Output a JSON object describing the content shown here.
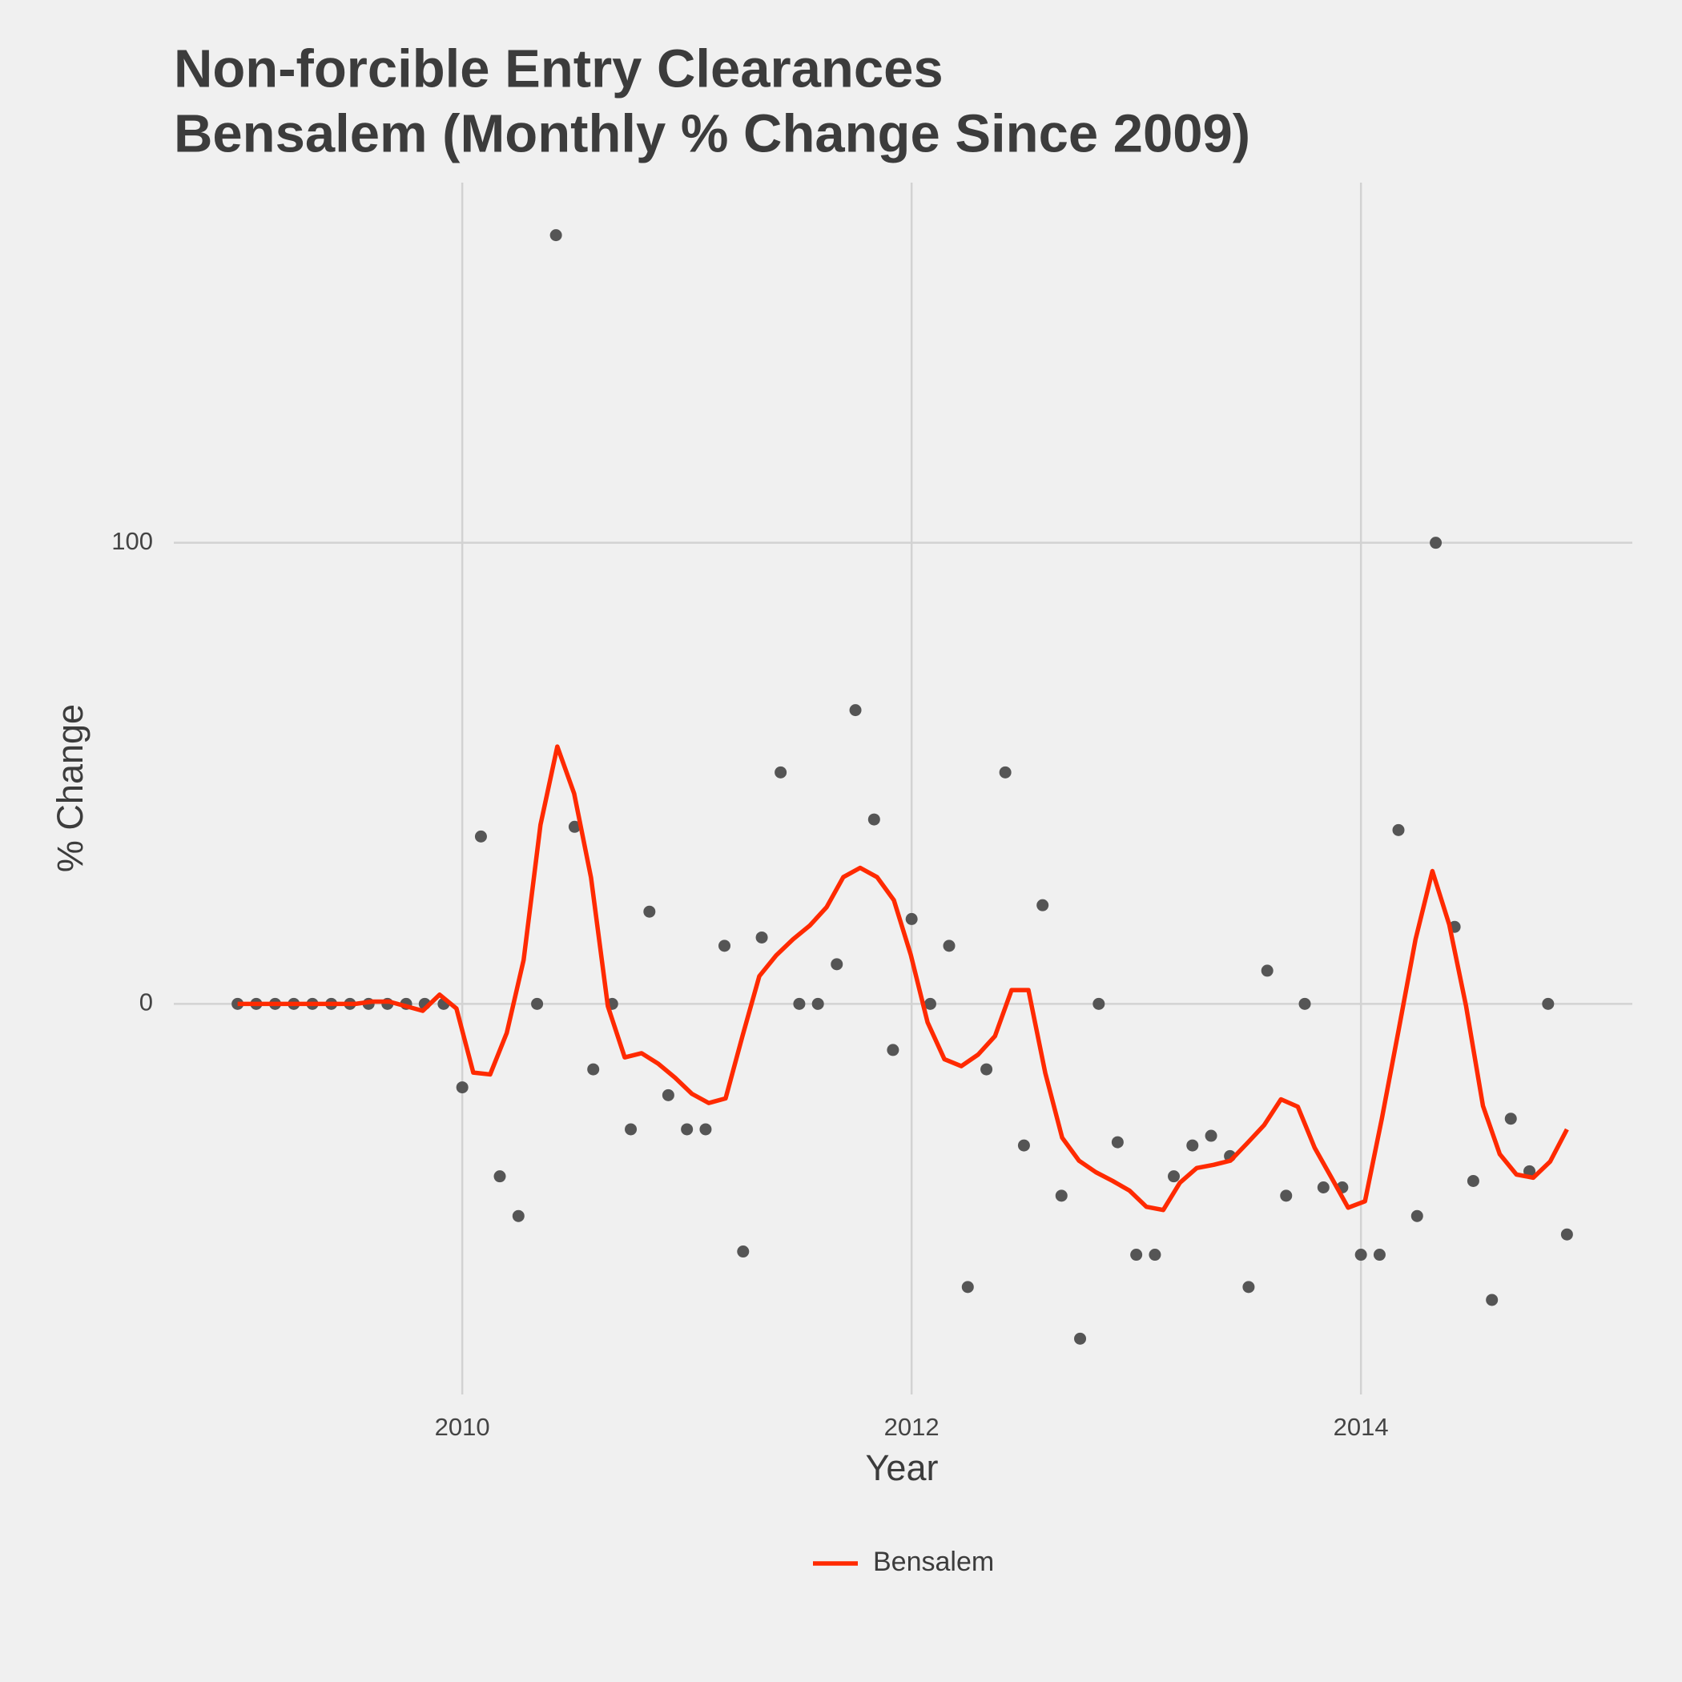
{
  "chart_data": {
    "type": "line",
    "title": "Non-forcible Entry Clearances",
    "subtitle": "Bensalem (Monthly % Change Since 2009)",
    "x_label": "Year",
    "y_label": "% Change",
    "xlim": [
      2008.716,
      2015.208
    ],
    "xticks": [
      2010,
      2012,
      2014
    ],
    "ylim": [
      -84.7,
      178.1
    ],
    "yticks": [
      0,
      100
    ],
    "grid": true,
    "legend": "bottom",
    "points": {
      "color": "#555555",
      "x": [
        2009,
        2009.083,
        2009.167,
        2009.25,
        2009.333,
        2009.417,
        2009.5,
        2009.583,
        2009.667,
        2009.75,
        2009.833,
        2009.917,
        2010,
        2010.083,
        2010.167,
        2010.25,
        2010.333,
        2010.417,
        2010.5,
        2010.583,
        2010.667,
        2010.75,
        2010.833,
        2010.917,
        2011,
        2011.083,
        2011.167,
        2011.25,
        2011.333,
        2011.417,
        2011.5,
        2011.583,
        2011.667,
        2011.75,
        2011.833,
        2011.917,
        2012,
        2012.083,
        2012.167,
        2012.25,
        2012.333,
        2012.417,
        2012.5,
        2012.583,
        2012.667,
        2012.75,
        2012.833,
        2012.917,
        2013,
        2013.083,
        2013.167,
        2013.25,
        2013.333,
        2013.417,
        2013.5,
        2013.583,
        2013.667,
        2013.75,
        2013.833,
        2013.917,
        2014,
        2014.083,
        2014.167,
        2014.25,
        2014.333,
        2014.417,
        2014.5,
        2014.583,
        2014.667,
        2014.75,
        2014.833,
        2014.917
      ],
      "values": [
        0,
        0,
        0,
        0,
        0,
        0,
        0,
        0,
        0,
        0,
        0,
        0,
        -18.1,
        36.3,
        -37.4,
        -46,
        0,
        166.7,
        38.4,
        -14.2,
        0,
        -27.2,
        20,
        -19.8,
        -27.2,
        -27.2,
        12.6,
        -53.7,
        14.4,
        50.2,
        0,
        0,
        8.6,
        63.7,
        40,
        -10,
        18.4,
        0,
        12.6,
        -61.4,
        -14.2,
        50.2,
        -30.7,
        21.4,
        -41.6,
        -72.6,
        0,
        -30,
        -54.4,
        -54.4,
        -37.4,
        -30.7,
        -28.6,
        -33,
        -61.4,
        7.2,
        -41.6,
        0,
        -39.8,
        -39.8,
        -54.4,
        -54.4,
        37.7,
        -46,
        100,
        16.7,
        -38.4,
        -64.2,
        -24.9,
        -36.3,
        0,
        -50
      ]
    },
    "series": [
      {
        "name": "Bensalem",
        "color": "#ff2a00",
        "x": [
          2009,
          2009.075,
          2009.15,
          2009.225,
          2009.3,
          2009.375,
          2009.449,
          2009.524,
          2009.599,
          2009.674,
          2009.749,
          2009.824,
          2009.899,
          2009.974,
          2010.049,
          2010.124,
          2010.198,
          2010.273,
          2010.348,
          2010.423,
          2010.498,
          2010.573,
          2010.648,
          2010.723,
          2010.798,
          2010.873,
          2010.947,
          2011.022,
          2011.097,
          2011.172,
          2011.247,
          2011.322,
          2011.397,
          2011.472,
          2011.547,
          2011.622,
          2011.696,
          2011.771,
          2011.846,
          2011.921,
          2011.996,
          2012.071,
          2012.146,
          2012.221,
          2012.296,
          2012.371,
          2012.445,
          2012.52,
          2012.595,
          2012.67,
          2012.745,
          2012.82,
          2012.895,
          2012.97,
          2013.045,
          2013.12,
          2013.194,
          2013.269,
          2013.344,
          2013.419,
          2013.494,
          2013.569,
          2013.644,
          2013.719,
          2013.794,
          2013.869,
          2013.943,
          2014.018,
          2014.093,
          2014.168,
          2014.243,
          2014.318,
          2014.393,
          2014.468,
          2014.543,
          2014.618,
          2014.692,
          2014.767,
          2014.842,
          2014.917
        ],
        "values": [
          0,
          0,
          0,
          0,
          0,
          0,
          0,
          0,
          0.5,
          0.5,
          -0.5,
          -1.5,
          2,
          -1,
          -14.9,
          -15.3,
          -6.3,
          9.5,
          38.8,
          55.8,
          45.6,
          27.4,
          -0.5,
          -11.6,
          -10.7,
          -13,
          -16,
          -19.5,
          -21.5,
          -20.5,
          -7,
          6,
          10.5,
          14,
          17,
          21,
          27.5,
          29.5,
          27.5,
          22.5,
          10.7,
          -4,
          -12,
          -13.5,
          -11,
          -7,
          3,
          3,
          -15,
          -29,
          -34,
          -36.5,
          -38.4,
          -40.5,
          -44,
          -44.7,
          -38.8,
          -35.6,
          -34.9,
          -34,
          -30.2,
          -26.3,
          -20.7,
          -22.3,
          -31.2,
          -37.7,
          -44.2,
          -42.8,
          -24.9,
          -5.6,
          14,
          28.8,
          17.2,
          -0.5,
          -22.1,
          -32.6,
          -37,
          -37.7,
          -34.2,
          -27.2
        ]
      }
    ]
  }
}
